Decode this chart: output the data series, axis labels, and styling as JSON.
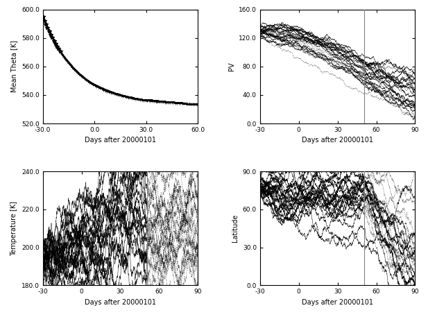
{
  "top_left": {
    "xlabel": "Days after 20000101",
    "ylabel": "Mean Theta [K]",
    "xlim": [
      -30,
      60
    ],
    "ylim": [
      520.0,
      600.0
    ],
    "yticks": [
      520.0,
      540.0,
      560.0,
      580.0,
      600.0
    ],
    "xticks": [
      -30.0,
      0.0,
      30.0,
      60.0
    ],
    "vline": null
  },
  "top_right": {
    "xlabel": "Days after 20000101",
    "ylabel": "PV",
    "xlim": [
      -30,
      90
    ],
    "ylim": [
      0.0,
      160.0
    ],
    "yticks": [
      0.0,
      40.0,
      80.0,
      120.0,
      160.0
    ],
    "xticks": [
      -30,
      0,
      30,
      60,
      90
    ],
    "vline": 50.5
  },
  "bottom_left": {
    "xlabel": "Days after 20000101",
    "ylabel": "Temperature [K]",
    "xlim": [
      -30,
      90
    ],
    "ylim": [
      180.0,
      240.0
    ],
    "yticks": [
      180.0,
      200.0,
      220.0,
      240.0
    ],
    "xticks": [
      -30,
      0,
      30,
      60,
      90
    ],
    "vline": 50.5
  },
  "bottom_right": {
    "xlabel": "Days after 20000101",
    "ylabel": "Latitude",
    "xlim": [
      -30,
      90
    ],
    "ylim": [
      0.0,
      90.0
    ],
    "yticks": [
      0.0,
      30.0,
      60.0,
      90.0
    ],
    "xticks": [
      -30,
      0,
      30,
      60,
      90
    ],
    "vline": 50.5
  },
  "vline_day": 50.5,
  "seed": 42,
  "n_trajectories": 25,
  "background_color": "#ffffff"
}
